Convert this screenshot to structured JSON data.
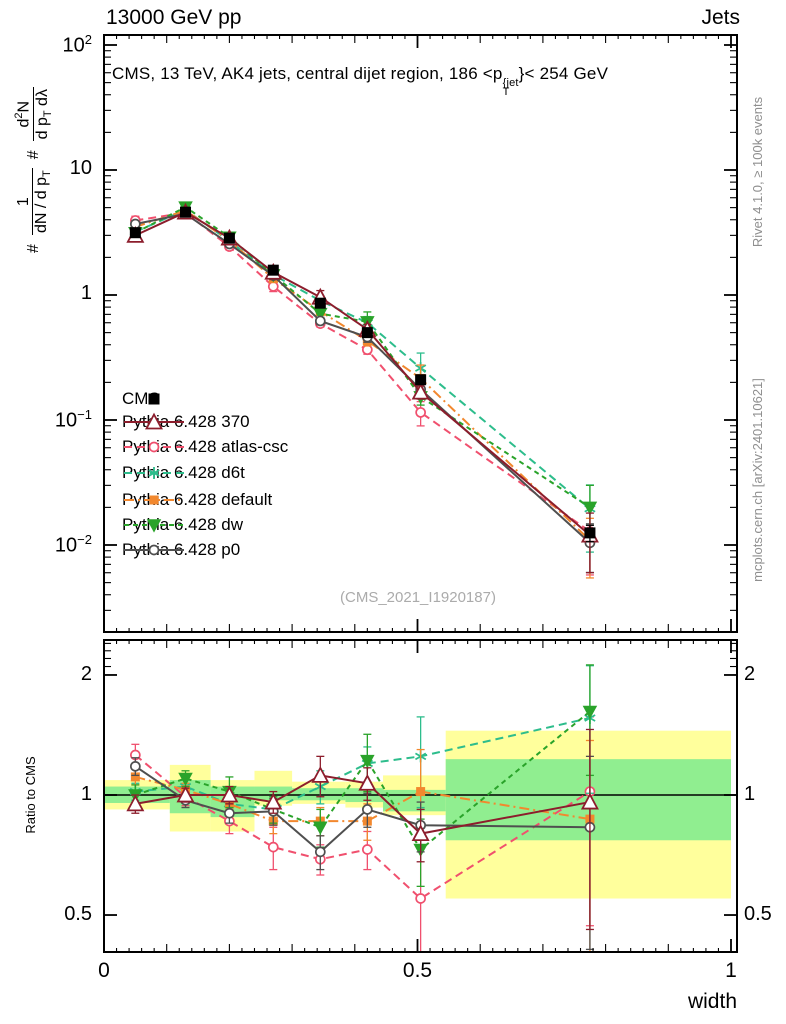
{
  "header": {
    "left": "13000 GeV pp",
    "right": "Jets"
  },
  "panel_title_segments": [
    {
      "t": "CMS, 13 TeV, AK4 jets, central dijet region, 186 <p"
    },
    {
      "stack": {
        "sup": "{jet",
        "sub": "T"
      }
    },
    {
      "t": "}< 254 GeV"
    }
  ],
  "y_axis_label_segments": [
    {
      "t": "#"
    },
    {
      "frac": {
        "num": [
          {
            "t": "1"
          }
        ],
        "den": [
          {
            "t": "dN / d p"
          },
          {
            "sub": "T"
          }
        ]
      }
    },
    {
      "t": "#"
    },
    {
      "frac": {
        "num": [
          {
            "t": "d"
          },
          {
            "sup": "2"
          },
          {
            "t": "N"
          }
        ],
        "den": [
          {
            "t": "d p"
          },
          {
            "sub": "T"
          },
          {
            "t": " dλ"
          }
        ]
      }
    }
  ],
  "side_notes": {
    "top": "Rivet 4.1.0, ≥ 100k events",
    "bottom": "mcplots.cern.ch [arXiv:2401.10621]"
  },
  "watermark": "(CMS_2021_I1920187)",
  "xlabel": "width",
  "ratio_ylabel": "Ratio to CMS",
  "axis_ticks": {
    "main_y": [
      {
        "base": "10",
        "exp": "2",
        "value": 100
      },
      {
        "base": "10",
        "exp": "",
        "value": 10
      },
      {
        "base": "1",
        "exp": "",
        "value": 1
      },
      {
        "base": "10",
        "exp": "−1",
        "value": 0.1
      },
      {
        "base": "10",
        "exp": "−2",
        "value": 0.01
      }
    ],
    "ratio_y": [
      {
        "label": "2",
        "value": 2
      },
      {
        "label": "1",
        "value": 1
      },
      {
        "label": "0.5",
        "value": 0.5
      }
    ],
    "x": [
      {
        "label": "0",
        "value": 0
      },
      {
        "label": "0.5",
        "value": 0.5
      },
      {
        "label": "1",
        "value": 1
      }
    ]
  },
  "chart_data": {
    "type": "line",
    "title": "CMS, 13 TeV, AK4 jets, central dijet region, 186 < pT(jet) < 254 GeV",
    "xlabel": "width",
    "ylabel": "1/(dN/dpT) d2N/(dpT dlambda)",
    "ratio_ylabel": "Ratio to CMS",
    "x_scale": "linear",
    "y_scale": "log",
    "x_range": [
      0,
      1.01
    ],
    "y_range_main": [
      0.002,
      120
    ],
    "y_range_ratio": [
      0.4,
      2.45
    ],
    "legend_position": "inside-left",
    "grid": false,
    "x": [
      0.05,
      0.13,
      0.2,
      0.27,
      0.345,
      0.42,
      0.505,
      0.775
    ],
    "bin_edges": [
      0,
      0.105,
      0.17,
      0.24,
      0.3,
      0.385,
      0.445,
      0.545,
      1.0
    ],
    "series": [
      {
        "id": "cms",
        "label": "CMS",
        "color": "#000000",
        "marker": "square",
        "marker_size": 11,
        "filled": true,
        "line": "none",
        "values": [
          3.15,
          4.6,
          2.85,
          1.58,
          0.86,
          0.5,
          0.21,
          0.0125
        ],
        "rel_err": [
          0.04,
          0.03,
          0.03,
          0.04,
          0.05,
          0.05,
          0.06,
          0.15
        ]
      },
      {
        "id": "py370",
        "label": "Pythia 6.428 370",
        "color": "#8c1d2c",
        "marker": "triangle-up",
        "marker_size": 13,
        "filled": false,
        "line": "solid",
        "values": [
          3.0,
          4.6,
          2.85,
          1.52,
          0.96,
          0.53,
          0.167,
          0.012
        ],
        "ratio": [
          0.95,
          1.0,
          1.0,
          0.96,
          1.12,
          1.07,
          0.8,
          0.96
        ],
        "ratio_err": [
          0.05,
          0.04,
          0.05,
          0.06,
          0.13,
          0.1,
          0.12,
          0.5
        ]
      },
      {
        "id": "atlas-csc",
        "label": "Pythia 6.428 atlas-csc",
        "color": "#f0506e",
        "marker": "circle",
        "marker_size": 9,
        "filled": false,
        "line": "dash",
        "values": [
          3.95,
          4.55,
          2.44,
          1.17,
          0.59,
          0.365,
          0.115,
          0.0128
        ],
        "ratio": [
          1.26,
          0.99,
          0.86,
          0.74,
          0.69,
          0.73,
          0.55,
          1.02
        ],
        "ratio_err": [
          0.08,
          0.05,
          0.06,
          0.09,
          0.06,
          0.08,
          0.22,
          0.55
        ]
      },
      {
        "id": "d6t",
        "label": "Pythia 6.428 d6t",
        "color": "#2dbd8c",
        "marker": "star",
        "marker_size": 12,
        "filled": true,
        "line": "dash",
        "values": [
          3.2,
          4.8,
          2.7,
          1.45,
          0.9,
          0.6,
          0.26,
          0.0195
        ],
        "ratio": [
          1.02,
          1.05,
          0.95,
          0.92,
          1.05,
          1.2,
          1.25,
          1.56
        ],
        "ratio_err": [
          0.05,
          0.04,
          0.06,
          0.07,
          0.1,
          0.12,
          0.32,
          0.55
        ]
      },
      {
        "id": "default",
        "label": "Pythia 6.428 default",
        "color": "#f2882e",
        "marker": "square",
        "marker_size": 9,
        "filled": true,
        "line": "dashdot",
        "values": [
          3.5,
          4.75,
          2.72,
          1.35,
          0.74,
          0.43,
          0.215,
          0.0109
        ],
        "ratio": [
          1.11,
          1.03,
          0.95,
          0.86,
          0.86,
          0.86,
          1.02,
          0.87
        ],
        "ratio_err": [
          0.05,
          0.04,
          0.05,
          0.06,
          0.07,
          0.09,
          0.28,
          0.5
        ]
      },
      {
        "id": "dw",
        "label": "Pythia 6.428 dw",
        "color": "#2aa32a",
        "marker": "triangle-down",
        "marker_size": 12,
        "filled": true,
        "line": "dash2",
        "values": [
          3.15,
          5.05,
          2.9,
          1.45,
          0.71,
          0.61,
          0.153,
          0.02
        ],
        "ratio": [
          1.0,
          1.1,
          1.02,
          0.92,
          0.83,
          1.22,
          0.73,
          1.62
        ],
        "ratio_err": [
          0.06,
          0.05,
          0.09,
          0.07,
          0.09,
          0.2,
          0.14,
          0.5
        ]
      },
      {
        "id": "p0",
        "label": "Pythia 6.428 p0",
        "color": "#4f4f4f",
        "marker": "circle",
        "marker_size": 9,
        "filled": false,
        "line": "solid",
        "values": [
          3.7,
          4.45,
          2.56,
          1.43,
          0.62,
          0.46,
          0.176,
          0.0104
        ],
        "ratio": [
          1.18,
          0.97,
          0.9,
          0.91,
          0.72,
          0.92,
          0.84,
          0.83
        ],
        "ratio_err": [
          0.06,
          0.04,
          0.05,
          0.07,
          0.07,
          0.09,
          0.12,
          0.42
        ]
      }
    ],
    "bands": {
      "yellow_color": "#ffff9c",
      "green_color": "#90ee90",
      "bins": [
        {
          "lo": 0,
          "hi": 0.105,
          "yellow": [
            0.92,
            1.09
          ],
          "green": [
            0.955,
            1.05
          ]
        },
        {
          "lo": 0.105,
          "hi": 0.17,
          "yellow": [
            0.81,
            1.19
          ],
          "green": [
            0.9,
            1.09
          ]
        },
        {
          "lo": 0.17,
          "hi": 0.24,
          "yellow": [
            0.81,
            1.09
          ],
          "green": [
            0.88,
            1.05
          ]
        },
        {
          "lo": 0.24,
          "hi": 0.3,
          "yellow": [
            0.94,
            1.15
          ],
          "green": [
            0.97,
            1.05
          ]
        },
        {
          "lo": 0.3,
          "hi": 0.385,
          "yellow": [
            0.95,
            1.08
          ],
          "green": [
            0.97,
            1.04
          ]
        },
        {
          "lo": 0.385,
          "hi": 0.445,
          "yellow": [
            0.93,
            1.08
          ],
          "green": [
            0.96,
            1.04
          ]
        },
        {
          "lo": 0.445,
          "hi": 0.545,
          "yellow": [
            0.89,
            1.12
          ],
          "green": [
            0.91,
            1.03
          ]
        },
        {
          "lo": 0.545,
          "hi": 1.0,
          "yellow": [
            0.55,
            1.45
          ],
          "green": [
            0.77,
            1.23
          ]
        }
      ]
    }
  }
}
